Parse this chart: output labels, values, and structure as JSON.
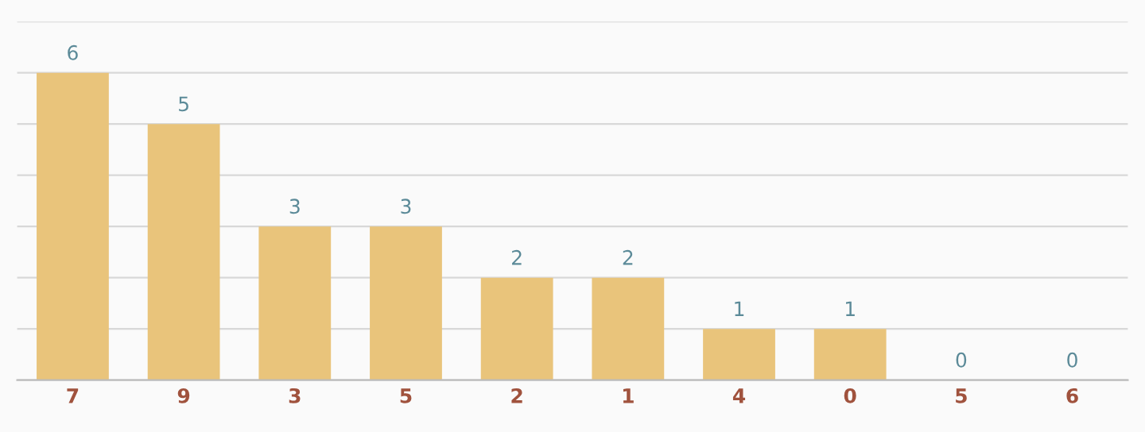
{
  "chart_data": {
    "type": "bar",
    "categories": [
      "7",
      "9",
      "3",
      "5",
      "2",
      "1",
      "4",
      "0",
      "5",
      "6"
    ],
    "values": [
      6,
      5,
      3,
      3,
      2,
      2,
      1,
      1,
      0,
      0
    ],
    "color": "#e9c47b",
    "ylim": [
      0,
      7
    ],
    "yticks": [
      {
        "value": 0,
        "label": null
      },
      {
        "value": 1,
        "label": null
      },
      {
        "value": 2,
        "label": null
      },
      {
        "value": 3,
        "label": null
      },
      {
        "value": 4,
        "label": null
      },
      {
        "value": 5,
        "label": null
      },
      {
        "value": 6,
        "label": null
      },
      {
        "value": 7,
        "label": null
      }
    ],
    "grid": "y",
    "tick_labels": "x",
    "data_labels": true
  }
}
